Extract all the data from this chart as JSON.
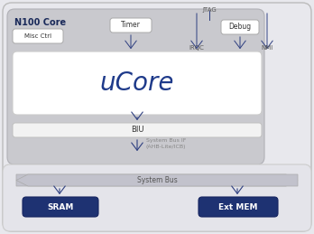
{
  "bg_outer": "#e8e8ed",
  "bg_n100": "#c9c9ce",
  "bg_ucore": "#ffffff",
  "bg_biu": "#f0f0f0",
  "bg_bottom": "#e0e0e6",
  "bg_sram": "#1e3272",
  "bg_extmem": "#1e3272",
  "bg_timer": "#ffffff",
  "bg_misc": "#ffffff",
  "bg_debug": "#ffffff",
  "text_dark": "#1a2a5a",
  "text_gray": "#666666",
  "arrow_color": "#2e3f80",
  "sysbus_arrow_color": "#9999aa",
  "n100_label": "N100 Core",
  "ucore_label": "uCore",
  "biu_label": "BIU",
  "timer_label": "Timer",
  "misc_label": "Misc Ctrl",
  "debug_label": "Debug",
  "jtag_label": "JTAG",
  "irqc_label": "IRQC",
  "nmi_label": "NMI",
  "sram_label": "SRAM",
  "extmem_label": "Ext MEM",
  "sysbus_label": "System Bus",
  "sysbusif_label": "System Bus IF\n(AHB-Lite/ICB)"
}
